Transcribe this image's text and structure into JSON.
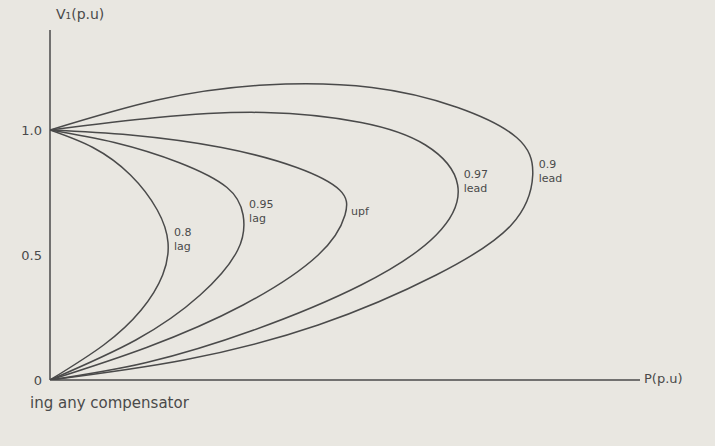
{
  "chart_data": {
    "type": "line",
    "x_label": "P(p.u)",
    "y_label": "V₁(p.u)",
    "annotation": "ing any compensator",
    "xlim": [
      0,
      1.1
    ],
    "xticks": [],
    "ylim": [
      0,
      1.4
    ],
    "yticks": [
      0,
      0.5,
      {
        "value": 1,
        "label": "1.0"
      }
    ],
    "tick_labels": "y",
    "grid": false,
    "color": "#4a4a4a",
    "series": [
      {
        "name": "0.8 lag",
        "x": [
          0,
          0.08,
          0.15,
          0.2,
          0.22,
          0.21,
          0.17,
          0.1,
          0
        ],
        "values": [
          1,
          0.93,
          0.82,
          0.68,
          0.55,
          0.42,
          0.28,
          0.14,
          0
        ]
      },
      {
        "name": "0.95 lag",
        "x": [
          0,
          0.12,
          0.24,
          0.33,
          0.36,
          0.35,
          0.28,
          0.16,
          0
        ],
        "values": [
          1,
          0.95,
          0.87,
          0.77,
          0.66,
          0.52,
          0.34,
          0.16,
          0
        ]
      },
      {
        "name": "upf",
        "x": [
          0,
          0.15,
          0.32,
          0.46,
          0.54,
          0.55,
          0.5,
          0.36,
          0.18,
          0
        ],
        "values": [
          1,
          0.98,
          0.93,
          0.85,
          0.76,
          0.66,
          0.5,
          0.3,
          0.13,
          0
        ]
      },
      {
        "name": "0.97 lead",
        "x": [
          0,
          0.2,
          0.4,
          0.58,
          0.7,
          0.76,
          0.72,
          0.58,
          0.38,
          0.18,
          0
        ],
        "values": [
          1,
          1.05,
          1.07,
          1.03,
          0.94,
          0.78,
          0.58,
          0.38,
          0.2,
          0.07,
          0
        ]
      },
      {
        "name": "0.9 lead",
        "x": [
          0,
          0.2,
          0.4,
          0.6,
          0.76,
          0.87,
          0.9,
          0.86,
          0.72,
          0.5,
          0.25,
          0
        ],
        "values": [
          1,
          1.12,
          1.18,
          1.17,
          1.09,
          0.97,
          0.82,
          0.62,
          0.42,
          0.22,
          0.08,
          0
        ]
      }
    ]
  }
}
